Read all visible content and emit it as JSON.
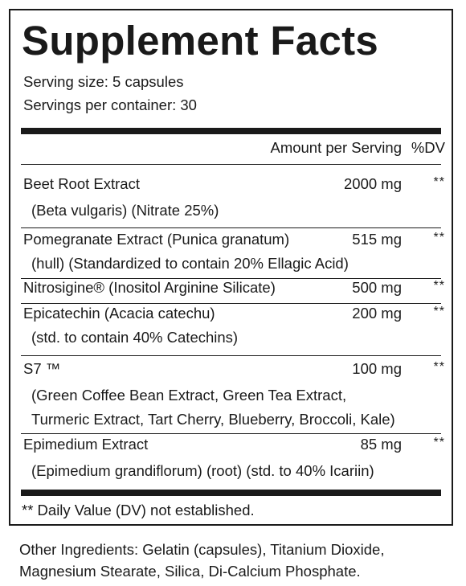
{
  "label": {
    "title": "Supplement Facts",
    "serving_size": "Serving size: 5 capsules",
    "servings_per_container": "Servings per container: 30",
    "header_amount": "Amount per Serving",
    "header_dv": "%DV",
    "ingredients": [
      {
        "name": "Beet Root Extract",
        "amount": "2000 mg",
        "dv": "**",
        "sub": [
          "(Beta vulgaris) (Nitrate 25%)"
        ]
      },
      {
        "name": "Pomegranate Extract (Punica granatum)",
        "amount": "515 mg",
        "dv": "**",
        "sub": [
          "(hull) (Standardized to contain 20% Ellagic Acid)"
        ]
      },
      {
        "name": "Nitrosigine® (Inositol Arginine Silicate)",
        "amount": "500 mg",
        "dv": "**",
        "sub": []
      },
      {
        "name": "Epicatechin (Acacia catechu)",
        "amount": "200 mg",
        "dv": "**",
        "sub": [
          "(std. to contain 40% Catechins)"
        ]
      },
      {
        "name": "S7 ™",
        "amount": "100 mg",
        "dv": "**",
        "sub": [
          "(Green Coffee Bean Extract, Green Tea Extract,",
          "Turmeric Extract, Tart Cherry, Blueberry, Broccoli, Kale)"
        ]
      },
      {
        "name": "Epimedium Extract",
        "amount": "85 mg",
        "dv": "**",
        "sub": [
          "(Epimedium grandiflorum) (root) (std. to 40% Icariin)"
        ]
      }
    ],
    "footnote": "** Daily Value (DV) not established."
  },
  "other_ingredients": "Other Ingredients: Gelatin (capsules), Titanium Dioxide, Magnesium Stearate, Silica, Di-Calcium Phosphate."
}
